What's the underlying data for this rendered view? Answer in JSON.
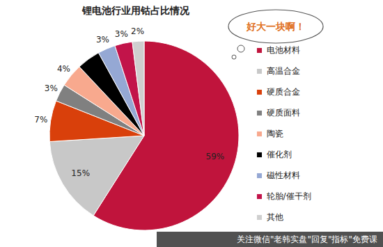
{
  "chart_data": {
    "type": "pie",
    "title": "锂电池行业用钴占比情况",
    "categories": [
      "电池材料",
      "高温合金",
      "硬质合金",
      "硬质面料",
      "陶瓷",
      "催化剂",
      "磁性材料",
      "轮胎/催干剂",
      "其他"
    ],
    "values": [
      59,
      15,
      7,
      3,
      4,
      4,
      3,
      3,
      2
    ],
    "value_labels": [
      "59%",
      "15%",
      "7%",
      "3%",
      "4%",
      null,
      "3%",
      "3%",
      "2%"
    ],
    "colors": [
      "#c0143c",
      "#c8c8c8",
      "#d9400b",
      "#808080",
      "#f8a98e",
      "#000000",
      "#95a8d4",
      "#c2144a",
      "#cfcfcf"
    ],
    "data_labels": true,
    "legend": "right",
    "annotations": [
      "好大一块啊！",
      "关注微信\"老韩实盘\"回复\"指标\"免费课"
    ]
  }
}
